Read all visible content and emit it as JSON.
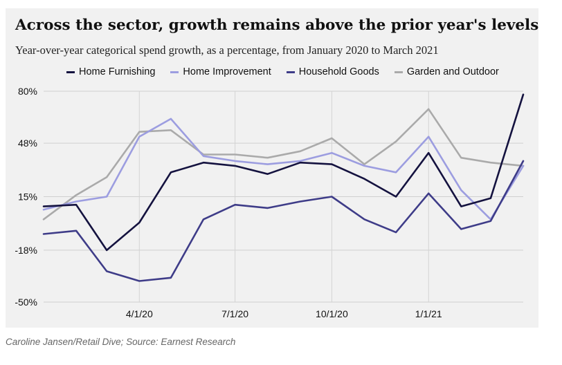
{
  "header": {
    "title": "Across the sector, growth remains above the prior year's levels",
    "subtitle": "Year-over-year categorical spend growth, as a percentage, from January 2020 to March 2021"
  },
  "footer": {
    "credit": "Caroline Jansen/Retail Dive; Source: Earnest Research"
  },
  "chart_data": {
    "type": "line",
    "title": "Across the sector, growth remains above the prior year's levels",
    "subtitle": "Year-over-year categorical spend growth, as a percentage, from January 2020 to March 2021",
    "x": [
      "2020-01-01",
      "2020-02-01",
      "2020-03-01",
      "2020-04-01",
      "2020-05-01",
      "2020-06-01",
      "2020-07-01",
      "2020-08-01",
      "2020-09-01",
      "2020-10-01",
      "2020-11-01",
      "2020-12-01",
      "2021-01-01",
      "2021-02-01",
      "2021-03-01",
      "2021-04-01"
    ],
    "xticks": [
      "4/1/20",
      "7/1/20",
      "10/1/20",
      "1/1/21"
    ],
    "yticks": [
      "80%",
      "48%",
      "15%",
      "-18%",
      "-50%"
    ],
    "ylim": [
      -50,
      80
    ],
    "grid": true,
    "legend": "top",
    "series": [
      {
        "name": "Home Furnishing",
        "color": "#14123f",
        "values": [
          9,
          10,
          -18,
          -1,
          30,
          36,
          34,
          29,
          36,
          35,
          26,
          15,
          42,
          9,
          14,
          78
        ]
      },
      {
        "name": "Home Improvement",
        "color": "#9c9de0",
        "values": [
          7,
          12,
          15,
          52,
          63,
          40,
          37,
          35,
          37,
          42,
          34,
          30,
          52,
          19,
          1,
          34
        ]
      },
      {
        "name": "Household Goods",
        "color": "#3e3c88",
        "values": [
          -8,
          -6,
          -31,
          -37,
          -35,
          1,
          10,
          8,
          12,
          15,
          1,
          -7,
          17,
          -5,
          0,
          37
        ]
      },
      {
        "name": "Garden and Outdoor",
        "color": "#aaaaaa",
        "values": [
          1,
          16,
          27,
          55,
          56,
          41,
          41,
          39,
          43,
          51,
          35,
          49,
          69,
          39,
          36,
          34
        ]
      }
    ]
  }
}
